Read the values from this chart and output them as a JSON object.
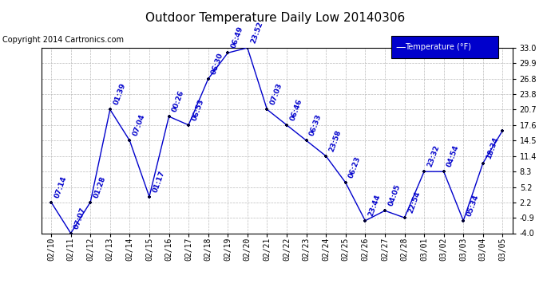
{
  "title": "Outdoor Temperature Daily Low 20140306",
  "copyright": "Copyright 2014 Cartronics.com",
  "legend_label": "Temperature (°F)",
  "x_labels": [
    "02/10",
    "02/11",
    "02/12",
    "02/13",
    "02/14",
    "02/15",
    "02/16",
    "02/17",
    "02/18",
    "02/19",
    "02/20",
    "02/21",
    "02/22",
    "02/23",
    "02/24",
    "02/25",
    "02/26",
    "02/27",
    "02/28",
    "03/01",
    "03/02",
    "03/03",
    "03/04",
    "03/05"
  ],
  "y_values": [
    2.2,
    -4.0,
    2.2,
    20.7,
    14.5,
    3.3,
    19.3,
    17.6,
    26.8,
    32.0,
    33.0,
    20.7,
    17.6,
    14.5,
    11.4,
    6.1,
    -1.5,
    0.5,
    -0.9,
    8.3,
    8.3,
    -1.5,
    10.0,
    16.5
  ],
  "time_labels": [
    "07:14",
    "07:07",
    "01:28",
    "01:39",
    "07:04",
    "01:17",
    "00:26",
    "06:53",
    "06:30",
    "06:49",
    "23:52",
    "07:03",
    "06:46",
    "06:33",
    "23:58",
    "06:23",
    "23:44",
    "04:05",
    "22:54",
    "23:32",
    "04:54",
    "05:34",
    "18:34",
    ""
  ],
  "ylim": [
    -4.0,
    33.0
  ],
  "yticks": [
    -4.0,
    -0.9,
    2.2,
    5.2,
    8.3,
    11.4,
    14.5,
    17.6,
    20.7,
    23.8,
    26.8,
    29.9,
    33.0
  ],
  "line_color": "#0000cc",
  "marker_color": "#000033",
  "bg_color": "#ffffff",
  "grid_color": "#bbbbbb",
  "title_color": "#000000",
  "label_color": "#0000cc",
  "legend_bg": "#0000cc",
  "legend_text_color": "#ffffff",
  "title_fontsize": 11,
  "copyright_fontsize": 7,
  "tick_fontsize": 7,
  "annotation_fontsize": 6.5
}
